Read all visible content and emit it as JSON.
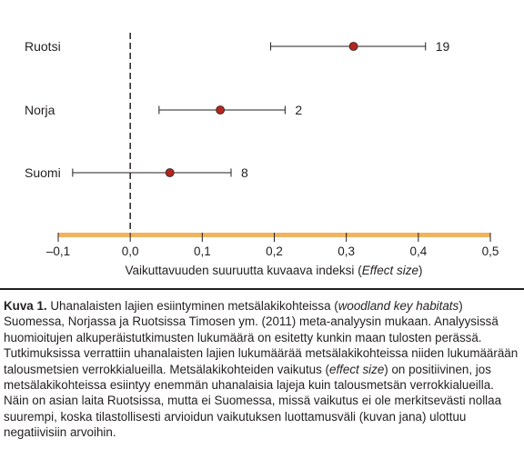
{
  "chart_data": {
    "type": "forest",
    "xlabel": "Vaikuttavuuden suuruutta kuvaava indeksi",
    "xlabel_em": "Effect size",
    "xlim": [
      -0.1,
      0.5
    ],
    "x_ticks": [
      -0.1,
      0.0,
      0.1,
      0.2,
      0.3,
      0.4,
      0.5
    ],
    "x_tick_labels": [
      "–0,1",
      "0,0",
      "0,1",
      "0,2",
      "0,3",
      "0,4",
      "0,5"
    ],
    "reference_line": 0.0,
    "grid": false,
    "rows": [
      {
        "label": "Ruotsi",
        "effect": 0.31,
        "ci_low": 0.195,
        "ci_high": 0.41,
        "n": "19"
      },
      {
        "label": "Norja",
        "effect": 0.125,
        "ci_low": 0.04,
        "ci_high": 0.215,
        "n": "2"
      },
      {
        "label": "Suomi",
        "effect": 0.055,
        "ci_low": -0.08,
        "ci_high": 0.14,
        "n": "8"
      }
    ],
    "colors": {
      "point": "#b5251c",
      "line": "#231f20",
      "axis_band": "#f0b45e",
      "reference": "#231f20"
    }
  },
  "caption": {
    "label": "Kuva 1.",
    "t1": "Uhanalaisten lajien esiintyminen metsälakikohteissa (",
    "em1": "woodland key habitats",
    "t2": ") Suomessa, Norjassa ja Ruotsissa Timosen ym. (2011) meta-analyysin mukaan. Analyysissä huomioitujen alkuperäistutkimusten lukumäärä on esitetty kunkin maan tulosten perässä. Tutkimuksissa verrattiin uhanalaisten lajien lukumäärää metsälakikohteissa niiden lukumäärään talousmetsien verrokkialueilla. Metsälakikohteiden vaikutus (",
    "em2": "effect size",
    "t3": ") on positiivinen, jos metsälakikohteissa esiintyy enemmän uhanalaisia lajeja kuin talousmetsän verrokkialueilla. Näin on asian laita Ruotsissa, mutta ei Suomessa, missä vaikutus ei ole merkitsevästi nollaa suurempi, koska tilastollisesti arvioidun vaikutuksen luottamusväli (kuvan jana) ulottuu negatiivisiin arvoihin."
  }
}
